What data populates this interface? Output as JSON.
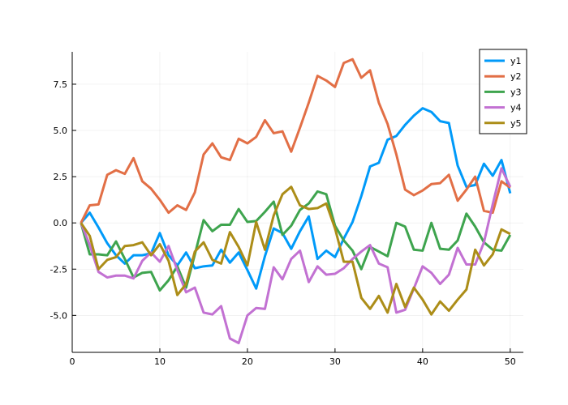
{
  "chart_data": {
    "type": "line",
    "x": [
      1,
      2,
      3,
      4,
      5,
      6,
      7,
      8,
      9,
      10,
      11,
      12,
      13,
      14,
      15,
      16,
      17,
      18,
      19,
      20,
      21,
      22,
      23,
      24,
      25,
      26,
      27,
      28,
      29,
      30,
      31,
      32,
      33,
      34,
      35,
      36,
      37,
      38,
      39,
      40,
      41,
      42,
      43,
      44,
      45,
      46,
      47,
      48,
      49,
      50
    ],
    "series": [
      {
        "name": "y1",
        "color": "#009af9",
        "values": [
          0.0,
          0.55,
          -0.25,
          -1.1,
          -1.75,
          -2.2,
          -1.75,
          -1.75,
          -1.65,
          -0.55,
          -1.75,
          -2.3,
          -1.6,
          -2.45,
          -2.35,
          -2.3,
          -1.45,
          -2.15,
          -1.6,
          -2.55,
          -3.55,
          -1.8,
          -0.3,
          -0.55,
          -1.4,
          -0.45,
          0.35,
          -1.95,
          -1.5,
          -1.85,
          -0.85,
          0.05,
          1.45,
          3.05,
          3.25,
          4.5,
          4.7,
          5.3,
          5.8,
          6.2,
          6.0,
          5.5,
          5.4,
          3.1,
          1.95,
          2.05,
          3.2,
          2.55,
          3.4,
          1.6
        ]
      },
      {
        "name": "y2",
        "color": "#e26f46",
        "values": [
          0.0,
          0.95,
          1.0,
          2.6,
          2.85,
          2.65,
          3.5,
          2.25,
          1.85,
          1.25,
          0.55,
          0.95,
          0.7,
          1.65,
          3.7,
          4.3,
          3.55,
          3.4,
          4.55,
          4.3,
          4.65,
          5.55,
          4.85,
          4.95,
          3.85,
          5.15,
          6.5,
          7.95,
          7.7,
          7.35,
          8.65,
          8.85,
          7.85,
          8.25,
          6.5,
          5.35,
          3.7,
          1.8,
          1.5,
          1.75,
          2.1,
          2.15,
          2.6,
          1.2,
          1.8,
          2.5,
          0.65,
          0.55,
          2.25,
          1.9
        ]
      },
      {
        "name": "y3",
        "color": "#3ea44e",
        "values": [
          0.0,
          -1.7,
          -1.7,
          -1.75,
          -1.0,
          -1.95,
          -2.95,
          -2.7,
          -2.65,
          -3.65,
          -3.1,
          -2.35,
          -3.5,
          -1.7,
          0.15,
          -0.45,
          -0.1,
          -0.1,
          0.75,
          0.05,
          0.1,
          0.6,
          1.15,
          -0.65,
          -0.15,
          0.7,
          1.05,
          1.7,
          1.55,
          -0.15,
          -0.95,
          -1.5,
          -2.5,
          -1.3,
          -1.55,
          -1.8,
          0.0,
          -0.2,
          -1.45,
          -1.5,
          0.0,
          -1.4,
          -1.45,
          -0.95,
          0.5,
          -0.2,
          -1.05,
          -1.45,
          -1.5,
          -0.65
        ]
      },
      {
        "name": "y4",
        "color": "#c271d2",
        "values": [
          0.0,
          -1.2,
          -2.65,
          -2.95,
          -2.85,
          -2.85,
          -3.0,
          -2.05,
          -1.6,
          -2.1,
          -1.25,
          -2.55,
          -3.75,
          -3.5,
          -4.85,
          -4.95,
          -4.5,
          -6.25,
          -6.5,
          -5.0,
          -4.6,
          -4.65,
          -2.4,
          -3.05,
          -1.95,
          -1.5,
          -3.2,
          -2.35,
          -2.8,
          -2.75,
          -2.45,
          -1.95,
          -1.55,
          -1.2,
          -2.2,
          -2.4,
          -4.85,
          -4.7,
          -3.55,
          -2.35,
          -2.7,
          -3.3,
          -2.8,
          -1.35,
          -2.25,
          -2.25,
          -1.05,
          1.0,
          2.95,
          1.95
        ]
      },
      {
        "name": "y5",
        "color": "#ac8d18",
        "values": [
          0.0,
          -0.7,
          -2.5,
          -2.0,
          -1.85,
          -1.25,
          -1.2,
          -1.05,
          -1.75,
          -1.15,
          -2.05,
          -3.9,
          -3.3,
          -1.55,
          -1.05,
          -2.0,
          -2.2,
          -0.5,
          -1.3,
          -2.3,
          0.05,
          -1.45,
          0.4,
          1.55,
          1.95,
          0.95,
          0.75,
          0.8,
          1.05,
          -0.3,
          -2.1,
          -2.1,
          -4.05,
          -4.65,
          -3.95,
          -4.85,
          -3.3,
          -4.55,
          -3.5,
          -4.15,
          -4.95,
          -4.25,
          -4.75,
          -4.15,
          -3.6,
          -1.45,
          -2.3,
          -1.7,
          -0.35,
          -0.6
        ]
      }
    ],
    "xlim": [
      0,
      51.5
    ],
    "ylim": [
      -7.0,
      9.25
    ],
    "xticks": [
      "0",
      "10",
      "20",
      "30",
      "40",
      "50"
    ],
    "xtick_values": [
      0,
      10,
      20,
      30,
      40,
      50
    ],
    "yticks": [
      "-5.0",
      "-2.5",
      "0.0",
      "2.5",
      "5.0",
      "7.5"
    ],
    "ytick_values": [
      -5.0,
      -2.5,
      0.0,
      2.5,
      5.0,
      7.5
    ],
    "grid": true,
    "legend_position": "top-right",
    "title": "",
    "xlabel": "",
    "ylabel": ""
  }
}
